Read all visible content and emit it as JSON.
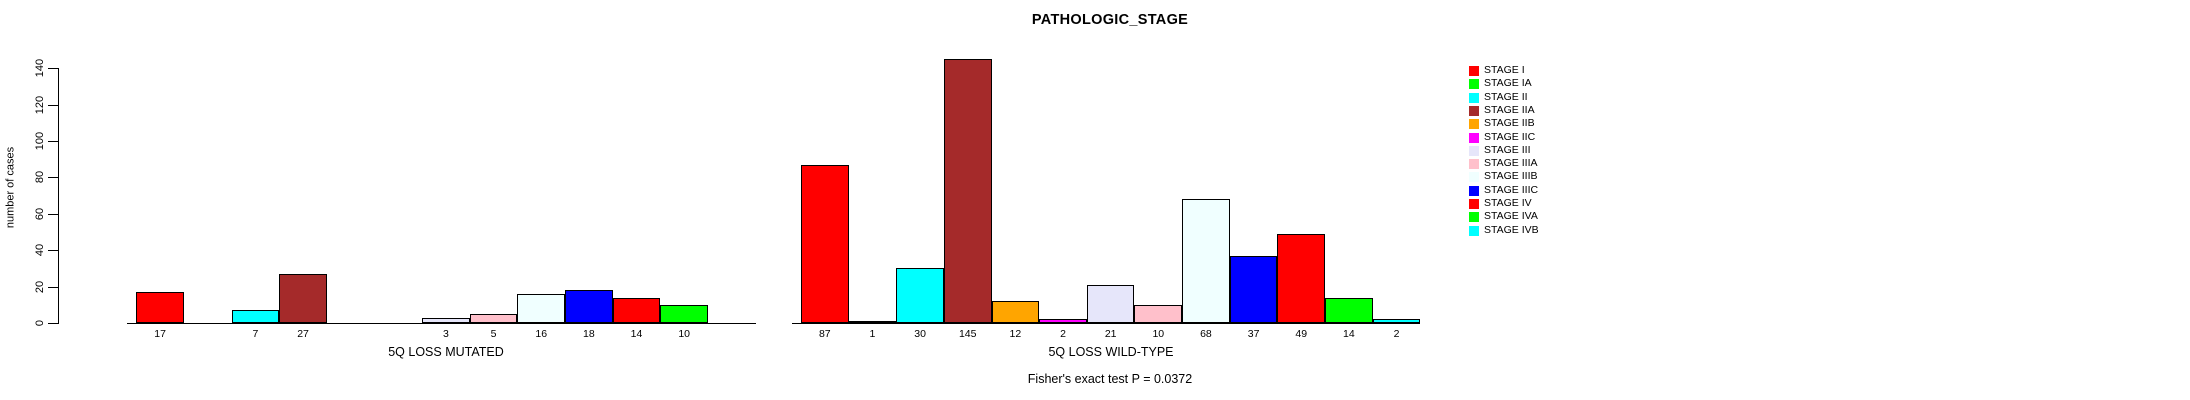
{
  "title": "PATHOLOGIC_STAGE",
  "chart_data": {
    "type": "bar",
    "title": "PATHOLOGIC_STAGE",
    "xlabel": "",
    "ylabel": "number of cases",
    "ylim": [
      0,
      145
    ],
    "yticks": [
      0,
      20,
      40,
      60,
      80,
      100,
      120,
      140
    ],
    "grid": false,
    "legend_position": "right",
    "bar_border_color": "#000000",
    "stages": [
      {
        "label": "STAGE I",
        "color": "#FF0000"
      },
      {
        "label": "STAGE IA",
        "color": "#00FF00"
      },
      {
        "label": "STAGE II",
        "color": "#00FFFF"
      },
      {
        "label": "STAGE IIA",
        "color": "#A52A2A"
      },
      {
        "label": "STAGE IIB",
        "color": "#FFA500"
      },
      {
        "label": "STAGE IIC",
        "color": "#FF00FF"
      },
      {
        "label": "STAGE III",
        "color": "#E6E6FA"
      },
      {
        "label": "STAGE IIIA",
        "color": "#FFC0CB"
      },
      {
        "label": "STAGE IIIB",
        "color": "#F0FFFF"
      },
      {
        "label": "STAGE IIIC",
        "color": "#0000FF"
      },
      {
        "label": "STAGE IV",
        "color": "#FF0000"
      },
      {
        "label": "STAGE IVA",
        "color": "#00FF00"
      },
      {
        "label": "STAGE IVB",
        "color": "#00FFFF"
      }
    ],
    "groups": [
      {
        "key": "mutated",
        "label": "5Q LOSS MUTATED",
        "values": [
          17,
          0,
          7,
          27,
          0,
          0,
          3,
          5,
          16,
          18,
          14,
          10,
          0
        ]
      },
      {
        "key": "wild-type",
        "label": "5Q LOSS WILD-TYPE",
        "values": [
          87,
          1,
          30,
          145,
          12,
          2,
          21,
          10,
          68,
          37,
          49,
          14,
          2
        ]
      }
    ],
    "annotation": "Fisher's exact test P = 0.0372"
  }
}
